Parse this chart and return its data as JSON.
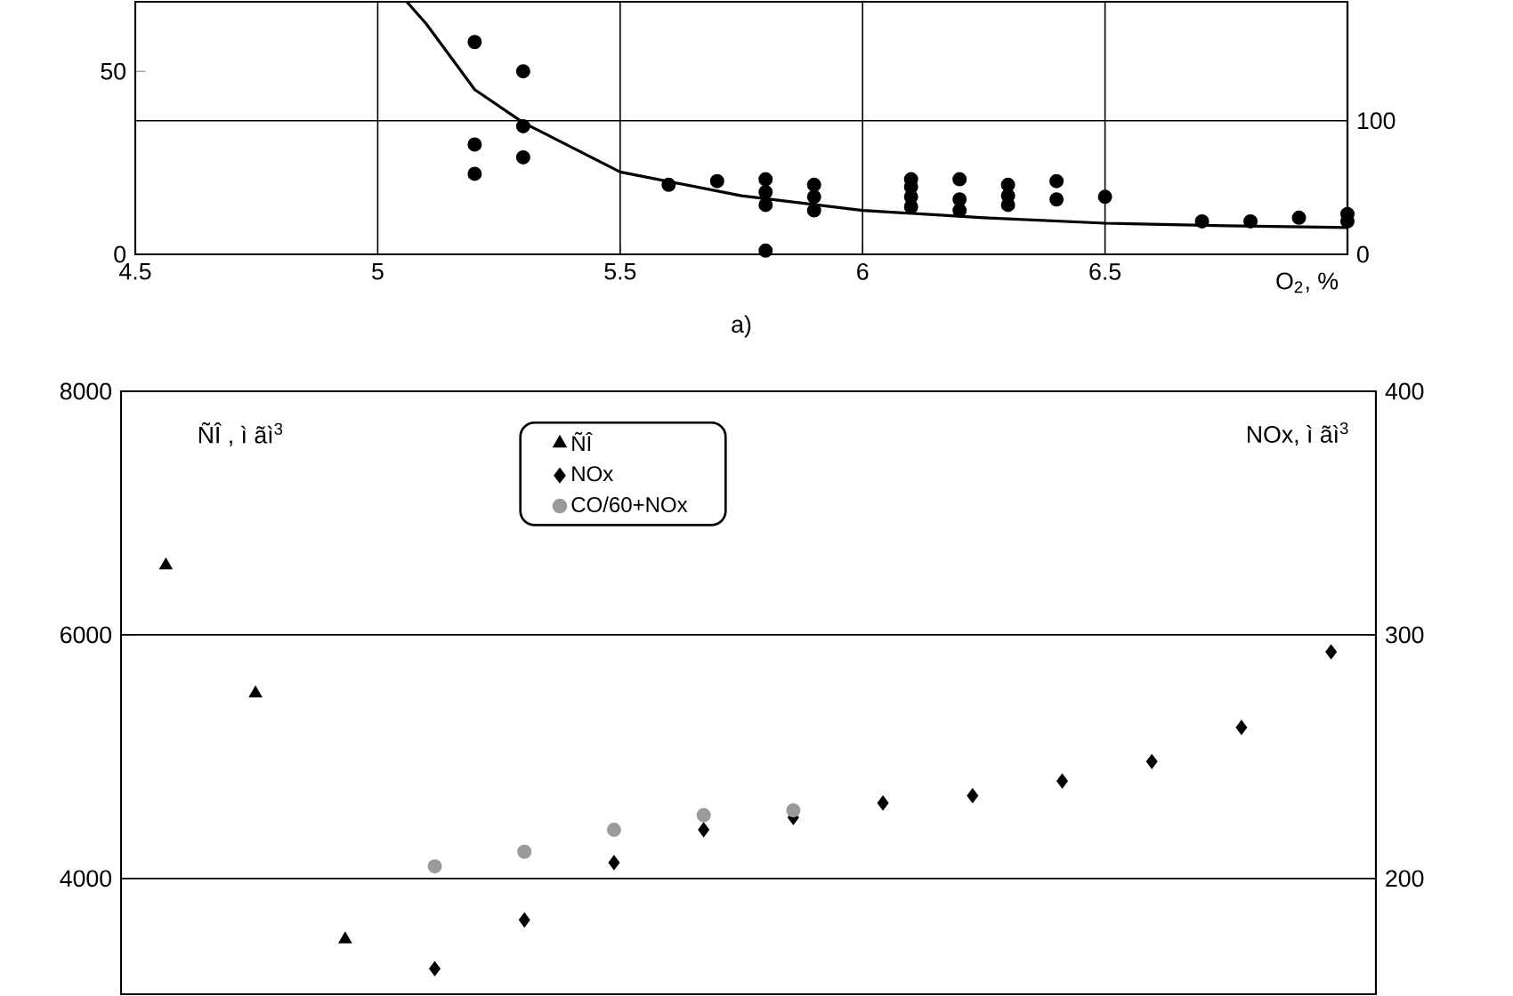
{
  "chart_data": [
    {
      "type": "scatter",
      "xlabel": "O$_{2}$, %",
      "annotations": [
        "a)"
      ],
      "grid": true,
      "xlim": [
        4.5,
        7.0
      ],
      "xticks": [
        4.5,
        5,
        5.5,
        6,
        6.5
      ],
      "ylim": [
        0,
        69
      ],
      "yticks": [
        0,
        50
      ],
      "y2lim": [
        0,
        189
      ],
      "y2ticks": [
        0,
        100
      ],
      "series": [
        {
          "marker": "circle",
          "color": "#000000",
          "x": [
            5.2,
            5.2,
            5.2,
            5.3,
            5.3,
            5.3,
            5.6,
            5.7,
            5.8,
            5.8,
            5.8,
            5.8,
            5.9,
            5.9,
            5.9,
            6.1,
            6.1,
            6.1,
            6.1,
            6.2,
            6.2,
            6.2,
            6.3,
            6.3,
            6.3,
            6.4,
            6.4,
            6.5,
            6.7,
            6.8,
            6.9,
            7.0,
            7.0
          ],
          "values": [
            58,
            30,
            22,
            50,
            35,
            26.5,
            19,
            20,
            20.5,
            17,
            13.5,
            1,
            19,
            15.7,
            12,
            20.5,
            18.4,
            15.7,
            13,
            20.5,
            15,
            12,
            19,
            16,
            13.5,
            20,
            15,
            15.7,
            9,
            9,
            10,
            11,
            9
          ]
        },
        {
          "type": "line",
          "marker": "none",
          "line_style": "solid",
          "color": "#000000",
          "x": [
            5.06,
            5.1,
            5.2,
            5.3,
            5.5,
            5.75,
            6,
            6.25,
            6.5,
            6.75,
            7.0
          ],
          "values": [
            69,
            63,
            45,
            36,
            22.5,
            16,
            12,
            10,
            8.5,
            7.8,
            7.3
          ]
        }
      ]
    },
    {
      "type": "scatter",
      "ylabel": "ÑÎ , ì ãì$^{3}$",
      "y2label": "NOx, ì ãì$^{3}$",
      "grid": "y",
      "legend": "top",
      "categories": [
        null,
        null,
        null,
        null,
        null,
        null,
        null,
        null,
        null,
        null,
        null,
        null,
        null,
        null
      ],
      "ylim": [
        3050,
        8000
      ],
      "yticks": [
        4000,
        6000,
        8000
      ],
      "y2lim": [
        152.5,
        400
      ],
      "y2ticks": [
        200,
        300,
        400
      ],
      "series": [
        {
          "name": "ÑÎ",
          "marker": "triangle",
          "color": "#000000",
          "values": [
            6570,
            5520,
            3500,
            null,
            null,
            null,
            null,
            null,
            null,
            null,
            null,
            null,
            null,
            null
          ]
        },
        {
          "name": "NOx",
          "marker": "diamond",
          "axis": "y2",
          "color": "#000000",
          "values": [
            null,
            null,
            null,
            163,
            183,
            206.5,
            220,
            225,
            231,
            234,
            240,
            248,
            262,
            293
          ]
        },
        {
          "name": "CO/60+NOx",
          "marker": "circle",
          "axis": "y2",
          "color": "#9a9a9a",
          "values": [
            null,
            null,
            null,
            205,
            211,
            220,
            226,
            228,
            null,
            null,
            null,
            null,
            null,
            null
          ]
        }
      ]
    }
  ]
}
